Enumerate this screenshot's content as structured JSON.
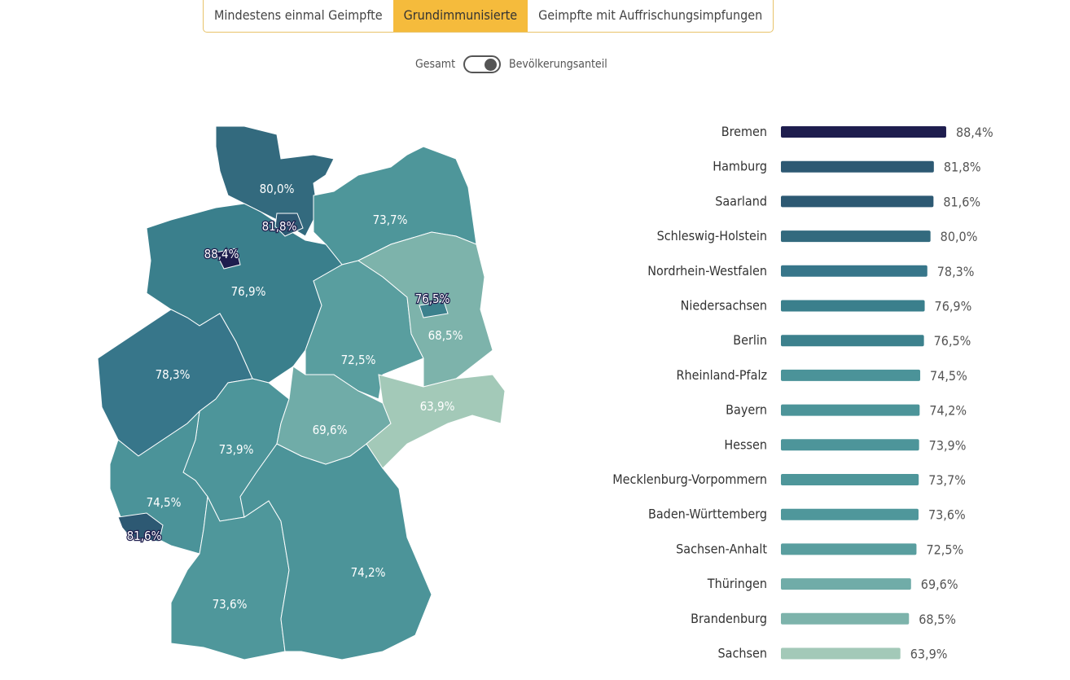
{
  "tabs": [
    {
      "label": "Mindestens einmal Geimpfte",
      "active": false
    },
    {
      "label": "Grundimmunisierte",
      "active": true
    },
    {
      "label": "Geimpfte mit Auffrischungsimpfungen",
      "active": false
    }
  ],
  "toggle": {
    "left_label": "Gesamt",
    "right_label": "Bevölkerungsanteil",
    "state": "right"
  },
  "chart_data": {
    "type": "bar",
    "orientation": "horizontal",
    "categories": [
      "Bremen",
      "Hamburg",
      "Saarland",
      "Schleswig-Holstein",
      "Nordrhein-Westfalen",
      "Niedersachsen",
      "Berlin",
      "Rheinland-Pfalz",
      "Bayern",
      "Hessen",
      "Mecklenburg-Vorpommern",
      "Baden-Württemberg",
      "Sachsen-Anhalt",
      "Thüringen",
      "Brandenburg",
      "Sachsen"
    ],
    "values": [
      88.4,
      81.8,
      81.6,
      80.0,
      78.3,
      76.9,
      76.5,
      74.5,
      74.2,
      73.9,
      73.7,
      73.6,
      72.5,
      69.6,
      68.5,
      63.9
    ],
    "labels": [
      "88,4%",
      "81,8%",
      "81,6%",
      "80,0%",
      "78,3%",
      "76,9%",
      "76,5%",
      "74,5%",
      "74,2%",
      "73,9%",
      "73,7%",
      "73,6%",
      "72,5%",
      "69,6%",
      "68,5%",
      "63,9%"
    ],
    "colors": [
      "#1e1d4e",
      "#2d5973",
      "#2d5973",
      "#336a7e",
      "#37768a",
      "#3a7f8c",
      "#3c818d",
      "#4b9399",
      "#4c9499",
      "#4d959a",
      "#4e969a",
      "#4f979b",
      "#599e9f",
      "#70aca8",
      "#7db3ab",
      "#a3c9b8"
    ],
    "map": "choropleth of German federal states, same values"
  }
}
